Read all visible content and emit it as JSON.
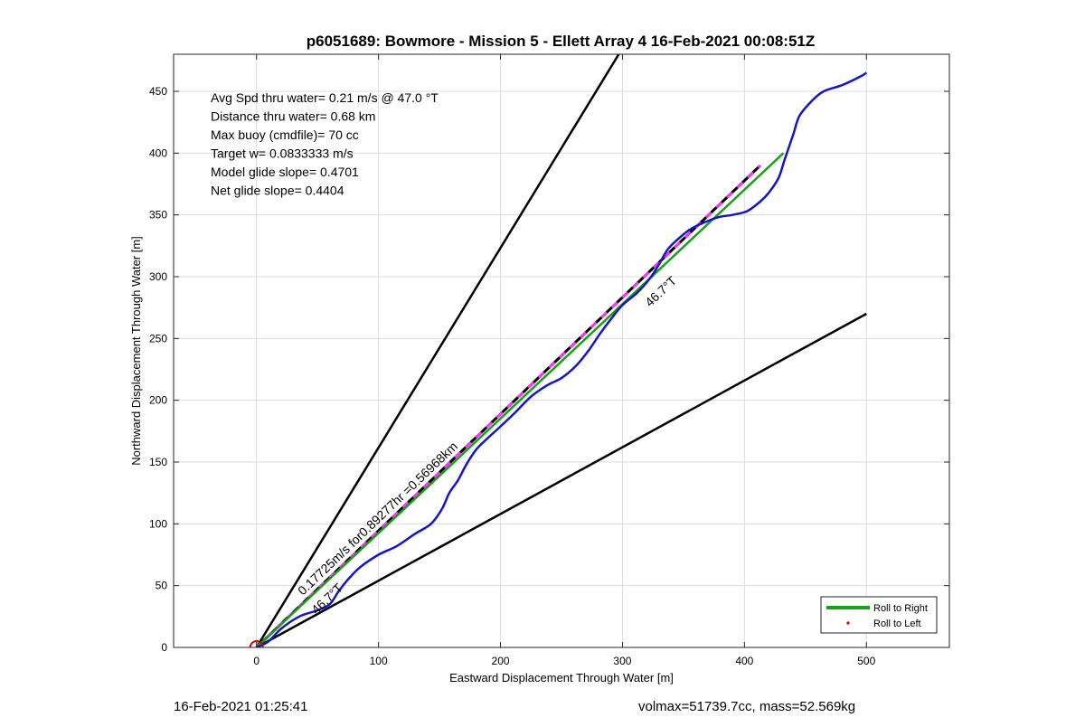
{
  "chart_data": {
    "type": "line",
    "title": "p6051689: Bowmore - Mission 5 - Ellett Array 4 16-Feb-2021 00:08:51Z",
    "xlabel": "Eastward Displacement Through Water [m]",
    "ylabel": "Northward Displacement Through Water [m]",
    "xlim": [
      -68,
      568
    ],
    "ylim": [
      0,
      480
    ],
    "xticks": [
      0,
      100,
      200,
      300,
      400,
      500
    ],
    "yticks": [
      0,
      50,
      100,
      150,
      200,
      250,
      300,
      350,
      400,
      450
    ],
    "grid": true,
    "annotations": [
      "Avg Spd thru water=  0.21 m/s @  47.0 °T",
      "Distance thru water=  0.68 km",
      "Max buoy (cmdfile)= 70 cc",
      "Target w= 0.0833333 m/s",
      "Model glide slope= 0.4701",
      "Net glide slope= 0.4404"
    ],
    "line_labels": {
      "track_speed": "0.17725m/s for0.89277hr =0.56968km",
      "heading_near": "46.7°T",
      "heading_far": "46.7°T"
    },
    "legend": {
      "position": "bottom-right",
      "entries": [
        "Roll to Right",
        "Roll to Left"
      ]
    },
    "series": [
      {
        "role": "glide-slope-bound-steep",
        "color": "#000000",
        "x": [
          0,
          300
        ],
        "y": [
          0,
          485
        ]
      },
      {
        "role": "glide-slope-bound-shallow",
        "color": "#000000",
        "x": [
          0,
          500
        ],
        "y": [
          0,
          270
        ]
      },
      {
        "role": "depth-average-current-track",
        "color": "#000000",
        "dash_color": "#ff33ff",
        "x": [
          0,
          413
        ],
        "y": [
          0,
          390
        ]
      },
      {
        "name": "Roll to Right",
        "color": "#1aa01a",
        "x": [
          0,
          432
        ],
        "y": [
          0,
          400
        ]
      },
      {
        "role": "glider-track",
        "color": "#1515c8",
        "x": [
          0,
          10,
          20,
          35,
          50,
          60,
          67,
          75,
          85,
          100,
          115,
          130,
          143,
          152,
          158,
          165,
          172,
          180,
          188,
          198,
          212,
          225,
          238,
          250,
          262,
          272,
          281,
          290,
          300,
          312,
          322,
          330,
          337,
          345,
          355,
          365,
          378,
          390,
          402,
          412,
          420,
          428,
          433,
          440,
          445,
          455,
          465,
          480,
          495,
          500
        ],
        "y": [
          0,
          5,
          15,
          25,
          30,
          35,
          45,
          55,
          65,
          75,
          82,
          92,
          100,
          112,
          125,
          135,
          148,
          160,
          168,
          177,
          190,
          203,
          212,
          218,
          228,
          240,
          253,
          265,
          277,
          287,
          298,
          310,
          322,
          330,
          338,
          343,
          348,
          350,
          353,
          360,
          368,
          380,
          395,
          415,
          430,
          442,
          450,
          455,
          462,
          465
        ]
      }
    ],
    "markers": {
      "origin_circle_color": "#cc0000",
      "roll_to_left_dot_color": "#cc0000"
    }
  },
  "footer": {
    "left": "16-Feb-2021 01:25:41",
    "right": "volmax=51739.7cc, mass=52.569kg"
  }
}
